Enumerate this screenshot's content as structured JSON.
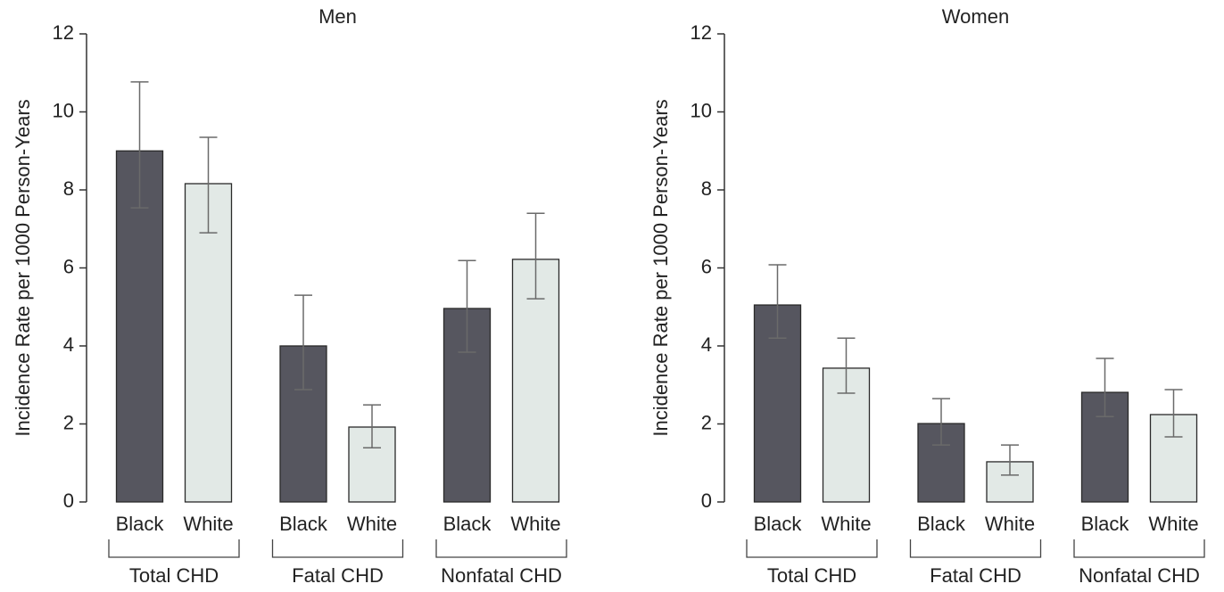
{
  "chart_data": [
    {
      "type": "bar",
      "title": "Men",
      "ylabel": "Incidence Rate per 1000 Person-Years",
      "categories": [
        "Total CHD",
        "Fatal CHD",
        "Nonfatal CHD"
      ],
      "series": [
        {
          "name": "Black",
          "color": "#56565f",
          "values": [
            9.0,
            4.0,
            4.96
          ],
          "lower": [
            7.54,
            2.88,
            3.84
          ],
          "upper": [
            10.77,
            5.3,
            6.19
          ]
        },
        {
          "name": "White",
          "color": "#e2e9e6",
          "values": [
            8.16,
            1.92,
            6.22
          ],
          "lower": [
            6.9,
            1.39,
            5.21
          ],
          "upper": [
            9.35,
            2.49,
            7.4
          ]
        }
      ],
      "ylim": [
        0,
        12
      ],
      "yticks": [
        0,
        2,
        4,
        6,
        8,
        10,
        12
      ]
    },
    {
      "type": "bar",
      "title": "Women",
      "ylabel": "Incidence Rate per 1000 Person-Years",
      "categories": [
        "Total CHD",
        "Fatal CHD",
        "Nonfatal CHD"
      ],
      "series": [
        {
          "name": "Black",
          "color": "#56565f",
          "values": [
            5.05,
            2.01,
            2.81
          ],
          "lower": [
            4.2,
            1.46,
            2.19
          ],
          "upper": [
            6.08,
            2.65,
            3.68
          ]
        },
        {
          "name": "White",
          "color": "#e2e9e6",
          "values": [
            3.43,
            1.03,
            2.24
          ],
          "lower": [
            2.79,
            0.69,
            1.67
          ],
          "upper": [
            4.2,
            1.46,
            2.88
          ]
        }
      ],
      "ylim": [
        0,
        12
      ],
      "yticks": [
        0,
        2,
        4,
        6,
        8,
        10,
        12
      ]
    }
  ]
}
